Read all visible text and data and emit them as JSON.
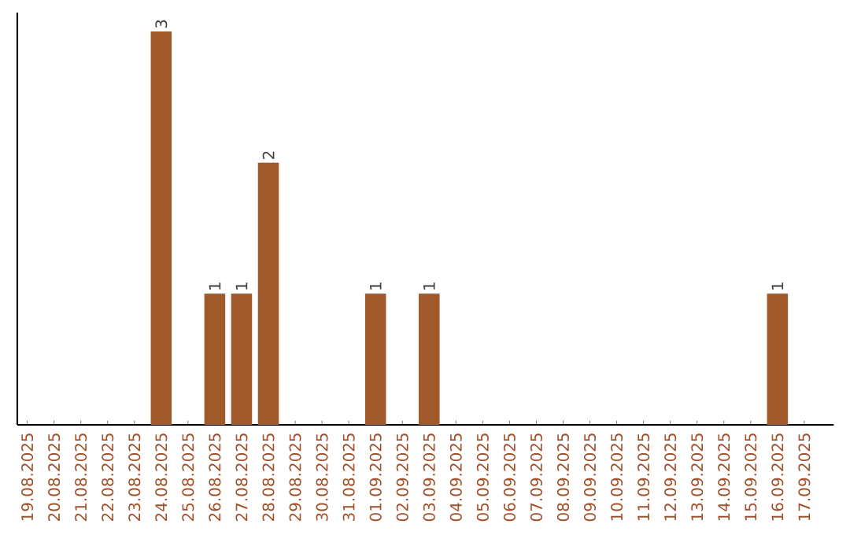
{
  "chart_data": {
    "type": "bar",
    "color": "#a0592b",
    "categories": [
      "19.08.2025",
      "20.08.2025",
      "21.08.2025",
      "22.08.2025",
      "23.08.2025",
      "24.08.2025",
      "25.08.2025",
      "26.08.2025",
      "27.08.2025",
      "28.08.2025",
      "29.08.2025",
      "30.08.2025",
      "31.08.2025",
      "01.09.2025",
      "02.09.2025",
      "03.09.2025",
      "04.09.2025",
      "05.09.2025",
      "06.09.2025",
      "07.09.2025",
      "08.09.2025",
      "09.09.2025",
      "10.09.2025",
      "11.09.2025",
      "12.09.2025",
      "13.09.2025",
      "14.09.2025",
      "15.09.2025",
      "16.09.2025",
      "17.09.2025"
    ],
    "values": [
      0,
      0,
      0,
      0,
      0,
      3,
      0,
      1,
      1,
      2,
      0,
      0,
      0,
      1,
      0,
      1,
      0,
      0,
      0,
      0,
      0,
      0,
      0,
      0,
      0,
      0,
      0,
      0,
      1,
      0
    ],
    "value_labels": [
      null,
      null,
      null,
      null,
      null,
      "3",
      null,
      "1",
      "1",
      "2",
      null,
      null,
      null,
      "1",
      null,
      "1",
      null,
      null,
      null,
      null,
      null,
      null,
      null,
      null,
      null,
      null,
      null,
      null,
      "1",
      null
    ],
    "tick_labels": "x"
  }
}
